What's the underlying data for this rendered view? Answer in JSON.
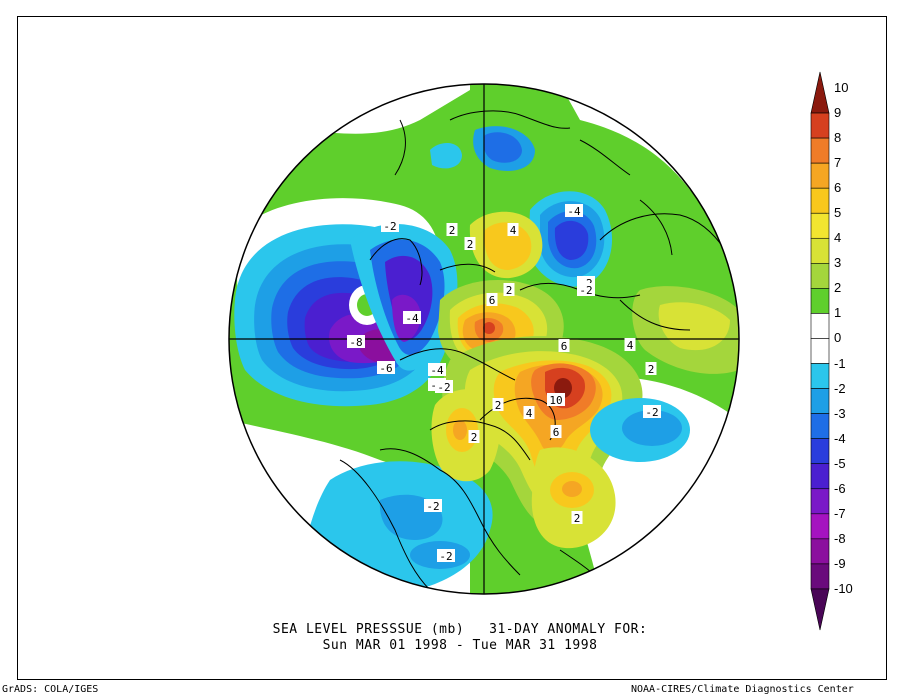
{
  "title": {
    "line1": "SEA LEVEL PRESSSUE (mb)   31-DAY ANOMALY FOR:",
    "line2": "Sun MAR 01 1998 - Tue MAR 31 1998"
  },
  "footer": {
    "left": "GrADS: COLA/IGES",
    "right": "NOAA-CIRES/Climate Diagnostics Center"
  },
  "colorbar": {
    "labels": [
      "10",
      "9",
      "8",
      "7",
      "6",
      "5",
      "4",
      "3",
      "2",
      "1",
      "0",
      "-1",
      "-2",
      "-3",
      "-4",
      "-5",
      "-6",
      "-7",
      "-8",
      "-9",
      "-10"
    ],
    "colors": [
      "#8b1a0e",
      "#d6401f",
      "#f07c28",
      "#f5a623",
      "#f8c81d",
      "#f2e530",
      "#d8e236",
      "#a4d63c",
      "#5fcf2c",
      "#ffffff",
      "#ffffff",
      "#2bc6ec",
      "#1e9fe6",
      "#1e6ee6",
      "#2a3ddc",
      "#4b1fd0",
      "#7a19c8",
      "#a513c0",
      "#8b0f9e",
      "#6a0a7c",
      "#4a0657"
    ]
  },
  "contour_labels": [
    "-2",
    "2",
    "-4",
    "4",
    "-2",
    "2",
    "-4",
    "-6",
    "-4",
    "-8",
    "-4",
    "-2",
    "6",
    "6",
    "2",
    "4",
    "10",
    "6",
    "-2",
    "2",
    "2",
    "4",
    "2",
    "-2",
    "-2",
    "2",
    "-2"
  ],
  "anomaly_centers": [
    {
      "sign": "negative",
      "value": -8,
      "region": "north-pacific-aleutian"
    },
    {
      "sign": "positive",
      "value": 10,
      "region": "northeast-canada"
    },
    {
      "sign": "positive",
      "value": 6,
      "region": "arctic-siberia"
    },
    {
      "sign": "negative",
      "value": -4,
      "region": "central-siberia"
    },
    {
      "sign": "positive",
      "value": 4,
      "region": "east-asia"
    },
    {
      "sign": "negative",
      "value": -2,
      "region": "north-atlantic-azores"
    },
    {
      "sign": "positive",
      "value": 2,
      "region": "central-atlantic"
    },
    {
      "sign": "negative",
      "value": -2,
      "region": "western-us"
    }
  ]
}
